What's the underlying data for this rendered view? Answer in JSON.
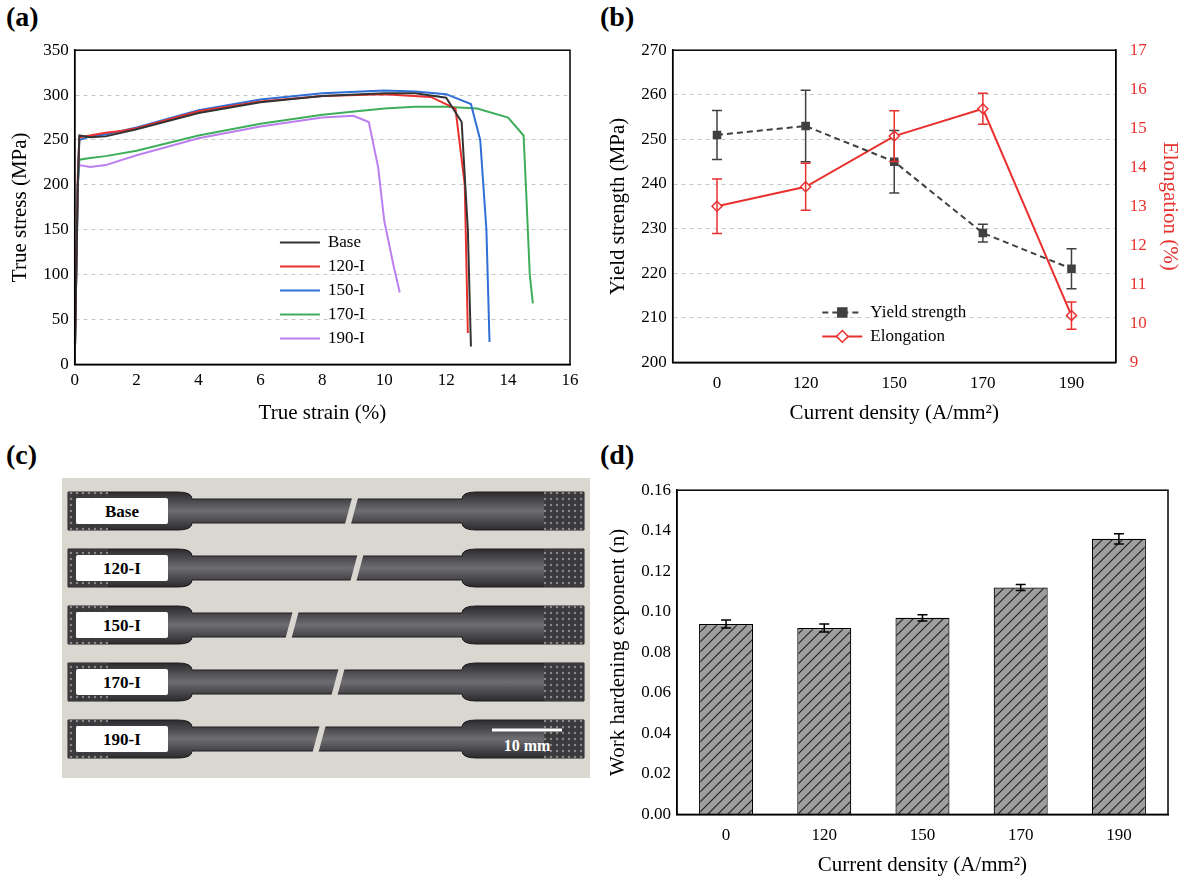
{
  "chart_data": [
    {
      "panel": "(a)",
      "type": "line",
      "x_label": "True strain (%)",
      "y_label": "True stress (MPa)",
      "xlim": [
        0,
        16
      ],
      "xticks": [
        0,
        2,
        4,
        6,
        8,
        10,
        12,
        14,
        16
      ],
      "ylim": [
        0,
        350
      ],
      "yticks": [
        0,
        50,
        100,
        150,
        200,
        250,
        300,
        350
      ],
      "grid": true,
      "legend": "lower center",
      "series": [
        {
          "name": "Base",
          "color": "#333333",
          "x": [
            0,
            0.1,
            0.15,
            0.5,
            1,
            2,
            4,
            6,
            8,
            10,
            11,
            12,
            12.5,
            12.7,
            12.8
          ],
          "values": [
            0,
            200,
            255,
            253,
            254,
            262,
            280,
            292,
            299,
            302,
            302,
            297,
            270,
            150,
            20
          ]
        },
        {
          "name": "120-I",
          "color": "#e8312f",
          "x": [
            0,
            0.1,
            0.15,
            0.5,
            1,
            1.5,
            2,
            4,
            6,
            8,
            10,
            11.5,
            12.3,
            12.6,
            12.7
          ],
          "values": [
            0,
            210,
            253,
            255,
            258,
            260,
            263,
            282,
            293,
            299,
            301,
            298,
            285,
            200,
            35
          ]
        },
        {
          "name": "150-I",
          "color": "#2f6fd6",
          "x": [
            0,
            0.1,
            0.15,
            0.5,
            1,
            2,
            4,
            6,
            8,
            10,
            11,
            12,
            12.8,
            13.1,
            13.3,
            13.4
          ],
          "values": [
            0,
            200,
            250,
            254,
            256,
            264,
            283,
            295,
            302,
            305,
            304,
            301,
            290,
            250,
            150,
            25
          ]
        },
        {
          "name": "170-I",
          "color": "#3fae5a",
          "x": [
            0,
            0.1,
            0.15,
            0.5,
            1,
            2,
            4,
            6,
            8,
            10,
            11,
            12,
            13,
            14,
            14.5,
            14.6,
            14.7,
            14.8
          ],
          "values": [
            0,
            200,
            228,
            230,
            232,
            238,
            255,
            268,
            278,
            285,
            287,
            287,
            285,
            275,
            255,
            180,
            100,
            68
          ]
        },
        {
          "name": "190-I",
          "color": "#bb7ff0",
          "x": [
            0,
            0.1,
            0.15,
            0.5,
            1,
            2,
            4,
            6,
            8,
            9,
            9.5,
            9.8,
            10,
            10.3,
            10.5
          ],
          "values": [
            0,
            200,
            222,
            220,
            222,
            233,
            252,
            265,
            275,
            277,
            270,
            220,
            160,
            110,
            80
          ]
        }
      ]
    },
    {
      "panel": "(b)",
      "type": "line",
      "x_label": "Current density (A/mm²)",
      "y_label": "Yield strength (MPa)",
      "y2_label": "Elongation (%)",
      "categories": [
        "0",
        "120",
        "150",
        "170",
        "190"
      ],
      "ylim": [
        200,
        270
      ],
      "yticks": [
        200,
        210,
        220,
        230,
        240,
        250,
        260,
        270
      ],
      "y2lim": [
        9,
        17
      ],
      "y2ticks": [
        9,
        10,
        11,
        12,
        13,
        14,
        15,
        16,
        17
      ],
      "grid": true,
      "legend": "lower center",
      "series": [
        {
          "name": "Yield strength",
          "color": "#404040",
          "line_style": "dashed",
          "marker": "square",
          "values": [
            251,
            253,
            245,
            229,
            221
          ],
          "errors": [
            5.5,
            8,
            7,
            2,
            4.5
          ]
        },
        {
          "name": "Elongation",
          "color": "#e8312f",
          "line_style": "solid",
          "marker": "diamond",
          "axis": "y2",
          "values": [
            13.0,
            13.5,
            14.8,
            15.5,
            10.2
          ],
          "errors": [
            0.7,
            0.6,
            0.65,
            0.4,
            0.35
          ]
        }
      ]
    },
    {
      "panel": "(c)",
      "type": "photo",
      "labels": [
        "Base",
        "120-I",
        "150-I",
        "170-I",
        "190-I"
      ],
      "scale_bar": "10 mm"
    },
    {
      "panel": "(d)",
      "type": "bar",
      "x_label": "Current density (A/mm²)",
      "y_label": "Work hardening exponent (n)",
      "categories": [
        "0",
        "120",
        "150",
        "170",
        "190"
      ],
      "values": [
        0.094,
        0.092,
        0.097,
        0.112,
        0.136
      ],
      "errors": [
        0.002,
        0.002,
        0.0015,
        0.0015,
        0.0025
      ],
      "color": "#9e9e9e",
      "ylim": [
        0,
        0.16
      ],
      "yticks": [
        {
          "value": 0,
          "label": "0.00"
        },
        {
          "value": 0.02,
          "label": "0.02"
        },
        {
          "value": 0.04,
          "label": "0.04"
        },
        {
          "value": 0.06,
          "label": "0.06"
        },
        {
          "value": 0.08,
          "label": "0.08"
        },
        {
          "value": 0.1,
          "label": "0.10"
        },
        {
          "value": 0.12,
          "label": "0.12"
        },
        {
          "value": 0.14,
          "label": "0.14"
        },
        {
          "value": 0.16,
          "label": "0.16"
        }
      ],
      "grid": false
    }
  ]
}
